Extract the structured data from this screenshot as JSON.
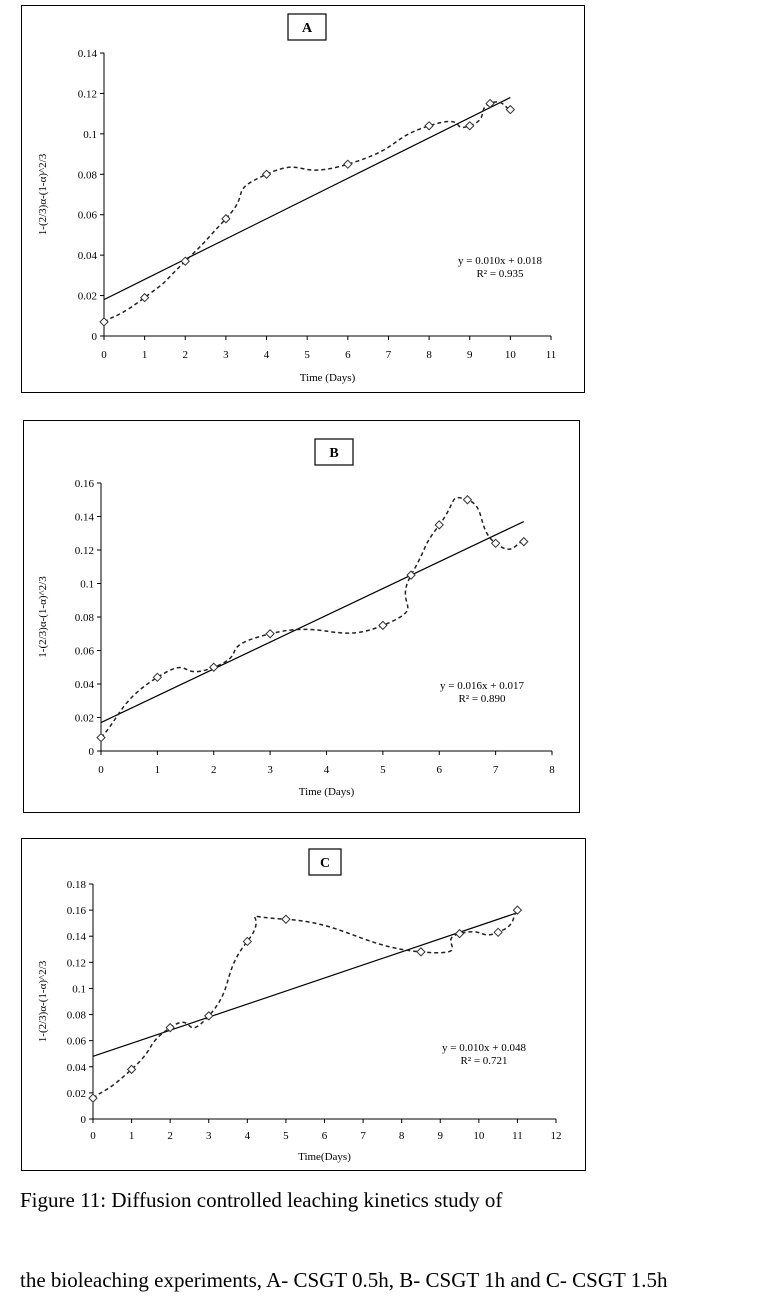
{
  "chart_data": [
    {
      "type": "scatter",
      "panel_label": "A",
      "xlabel": "Time (Days)",
      "ylabel": "1-(2/3)α-(1-α)^2/3",
      "xlim": [
        0,
        11
      ],
      "ylim": [
        0,
        0.14
      ],
      "x_ticks": [
        "0",
        "1",
        "2",
        "3",
        "4",
        "5",
        "6",
        "7",
        "8",
        "9",
        "10",
        "11"
      ],
      "y_ticks": [
        "0",
        "0.02",
        "0.04",
        "0.06",
        "0.08",
        "0.1",
        "0.12",
        "0.14"
      ],
      "grid": false,
      "legend": "none",
      "points": [
        [
          0,
          0.007
        ],
        [
          1,
          0.019
        ],
        [
          2,
          0.037
        ],
        [
          3,
          0.058
        ],
        [
          4,
          0.08
        ],
        [
          6,
          0.085
        ],
        [
          8,
          0.104
        ],
        [
          9,
          0.104
        ],
        [
          9.5,
          0.115
        ],
        [
          10,
          0.112
        ]
      ],
      "trendline": {
        "slope": 0.01,
        "intercept": 0.018,
        "x_range": [
          0,
          10
        ]
      },
      "equation": "y = 0.010x + 0.018",
      "r_squared": "R² = 0.935"
    },
    {
      "type": "scatter",
      "panel_label": "B",
      "xlabel": "Time (Days)",
      "ylabel": "1-(2/3)α-(1-α)^2/3",
      "xlim": [
        0,
        8
      ],
      "ylim": [
        0,
        0.16
      ],
      "x_ticks": [
        "0",
        "1",
        "2",
        "3",
        "4",
        "5",
        "6",
        "7",
        "8"
      ],
      "y_ticks": [
        "0",
        "0.02",
        "0.04",
        "0.06",
        "0.08",
        "0.1",
        "0.12",
        "0.14",
        "0.16"
      ],
      "grid": false,
      "legend": "none",
      "points": [
        [
          0,
          0.008
        ],
        [
          1,
          0.044
        ],
        [
          2,
          0.05
        ],
        [
          3,
          0.07
        ],
        [
          5,
          0.075
        ],
        [
          5.5,
          0.105
        ],
        [
          6,
          0.135
        ],
        [
          6.5,
          0.15
        ],
        [
          7,
          0.124
        ],
        [
          7.5,
          0.125
        ]
      ],
      "trendline": {
        "slope": 0.016,
        "intercept": 0.017,
        "x_range": [
          0,
          7.5
        ]
      },
      "equation": "y = 0.016x + 0.017",
      "r_squared": "R² = 0.890"
    },
    {
      "type": "scatter",
      "panel_label": "C",
      "xlabel": "Time(Days)",
      "ylabel": "1-(2/3)α-(1-α)^2/3",
      "xlim": [
        0,
        12
      ],
      "ylim": [
        0,
        0.18
      ],
      "x_ticks": [
        "0",
        "1",
        "2",
        "3",
        "4",
        "5",
        "6",
        "7",
        "8",
        "9",
        "10",
        "11",
        "12"
      ],
      "y_ticks": [
        "0",
        "0.02",
        "0.04",
        "0.06",
        "0.08",
        "0.1",
        "0.12",
        "0.14",
        "0.16",
        "0.18"
      ],
      "grid": false,
      "legend": "none",
      "points": [
        [
          0,
          0.016
        ],
        [
          1,
          0.038
        ],
        [
          2,
          0.07
        ],
        [
          3,
          0.079
        ],
        [
          4,
          0.136
        ],
        [
          5,
          0.153
        ],
        [
          8.5,
          0.128
        ],
        [
          9.5,
          0.142
        ],
        [
          10.5,
          0.143
        ],
        [
          11,
          0.16
        ]
      ],
      "trendline": {
        "slope": 0.01,
        "intercept": 0.048,
        "x_range": [
          0,
          11
        ]
      },
      "equation": "y = 0.010x + 0.048",
      "r_squared": "R² = 0.721"
    }
  ],
  "caption": {
    "line1": "Figure 11: Diffusion controlled leaching kinetics study of",
    "line2": "the bioleaching experiments, A- CSGT 0.5h, B- CSGT 1h and C- CSGT 1.5h"
  },
  "colors": {
    "axis": "#000000",
    "marker_stroke": "#333333",
    "curve": "#222222",
    "trend": "#000000"
  }
}
